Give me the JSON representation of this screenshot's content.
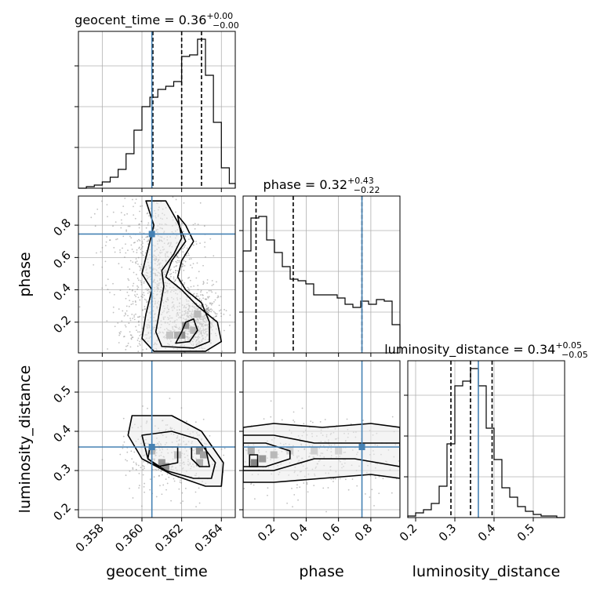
{
  "chart_data": {
    "type": "corner",
    "truth_color": "#4682b4",
    "parameters": [
      {
        "name": "geocent_time",
        "title_value": "0.36",
        "title_plus": "+0.00",
        "title_minus": "−0.00",
        "range": [
          0.3568,
          0.3647
        ],
        "ticks": [
          0.358,
          0.36,
          0.362,
          0.364
        ],
        "tick_labels": [
          "0.358",
          "0.360",
          "0.362",
          "0.364"
        ],
        "truth": 0.3605,
        "quantiles": [
          0.36055,
          0.362,
          0.363
        ],
        "hist_edges": [
          0.3568,
          0.3572,
          0.3576,
          0.358,
          0.3584,
          0.3588,
          0.3592,
          0.3596,
          0.36,
          0.3604,
          0.3608,
          0.3612,
          0.3616,
          0.362,
          0.3624,
          0.3628,
          0.3632,
          0.3636,
          0.364,
          0.3644,
          0.3647
        ],
        "hist_counts": [
          0,
          0.01,
          0.02,
          0.04,
          0.07,
          0.12,
          0.22,
          0.37,
          0.52,
          0.58,
          0.63,
          0.65,
          0.68,
          0.84,
          0.85,
          0.95,
          0.72,
          0.42,
          0.13,
          0.03
        ]
      },
      {
        "name": "phase",
        "title_value": "0.32",
        "title_plus": "+0.43",
        "title_minus": "−0.22",
        "range": [
          0.01,
          0.98
        ],
        "ticks": [
          0.2,
          0.4,
          0.6,
          0.8
        ],
        "tick_labels": [
          "0.2",
          "0.4",
          "0.6",
          "0.8"
        ],
        "truth": 0.745,
        "quantiles": [
          0.09,
          0.32,
          0.745
        ],
        "hist_edges": [
          0.01,
          0.0585,
          0.107,
          0.1555,
          0.204,
          0.2525,
          0.301,
          0.3495,
          0.398,
          0.4465,
          0.495,
          0.5435,
          0.592,
          0.6405,
          0.689,
          0.7375,
          0.786,
          0.8345,
          0.883,
          0.9315,
          0.98
        ],
        "hist_counts": [
          0.65,
          0.86,
          0.87,
          0.72,
          0.64,
          0.55,
          0.47,
          0.46,
          0.44,
          0.37,
          0.37,
          0.37,
          0.35,
          0.31,
          0.29,
          0.33,
          0.31,
          0.34,
          0.33,
          0.18
        ]
      },
      {
        "name": "luminosity_distance",
        "title_value": "0.34",
        "title_plus": "+0.05",
        "title_minus": "−0.05",
        "range": [
          0.18,
          0.58
        ],
        "ticks": [
          0.2,
          0.3,
          0.4,
          0.5
        ],
        "tick_labels": [
          "0.2",
          "0.3",
          "0.4",
          "0.5"
        ],
        "truth": 0.36,
        "quantiles": [
          0.29,
          0.34,
          0.395
        ],
        "hist_edges": [
          0.18,
          0.2,
          0.22,
          0.24,
          0.26,
          0.28,
          0.3,
          0.32,
          0.34,
          0.36,
          0.38,
          0.4,
          0.42,
          0.44,
          0.46,
          0.48,
          0.5,
          0.52,
          0.54,
          0.56,
          0.58
        ],
        "hist_counts": [
          0.01,
          0.03,
          0.05,
          0.09,
          0.2,
          0.47,
          0.84,
          0.87,
          0.95,
          0.84,
          0.57,
          0.37,
          0.19,
          0.13,
          0.07,
          0.04,
          0.02,
          0.01,
          0.01,
          0
        ]
      }
    ],
    "pairs": [
      {
        "x": "geocent_time",
        "y": "phase",
        "truth": [
          0.3605,
          0.745
        ],
        "scatter_centers": [
          [
            0.3605,
            0.2
          ],
          [
            0.3612,
            0.45
          ],
          [
            0.3605,
            0.7
          ],
          [
            0.3625,
            0.15
          ],
          [
            0.363,
            0.25
          ]
        ],
        "scatter_spread": [
          [
            0.0009,
            0.2
          ],
          [
            0.0008,
            0.12
          ],
          [
            0.0012,
            0.15
          ],
          [
            0.0006,
            0.07
          ],
          [
            0.0005,
            0.08
          ]
        ],
        "density_cells": [
          [
            0.362,
            0.12,
            0.9
          ],
          [
            0.3622,
            0.18,
            0.8
          ],
          [
            0.3618,
            0.12,
            0.6
          ],
          [
            0.3628,
            0.25,
            0.5
          ],
          [
            0.3626,
            0.15,
            0.5
          ],
          [
            0.3614,
            0.12,
            0.4
          ]
        ],
        "contours": [
          [
            [
              0.3606,
              0.02
            ],
            [
              0.36,
              0.1
            ],
            [
              0.3602,
              0.25
            ],
            [
              0.3605,
              0.4
            ],
            [
              0.36,
              0.5
            ],
            [
              0.3603,
              0.65
            ],
            [
              0.3606,
              0.8
            ],
            [
              0.3602,
              0.95
            ],
            [
              0.3612,
              0.95
            ],
            [
              0.3618,
              0.82
            ],
            [
              0.3622,
              0.7
            ],
            [
              0.3615,
              0.58
            ],
            [
              0.3612,
              0.48
            ],
            [
              0.362,
              0.4
            ],
            [
              0.3628,
              0.3
            ],
            [
              0.3638,
              0.2
            ],
            [
              0.364,
              0.08
            ],
            [
              0.3632,
              0.02
            ]
          ],
          [
            [
              0.361,
              0.05
            ],
            [
              0.3607,
              0.14
            ],
            [
              0.3609,
              0.28
            ],
            [
              0.3611,
              0.42
            ],
            [
              0.361,
              0.52
            ],
            [
              0.3616,
              0.62
            ],
            [
              0.362,
              0.72
            ],
            [
              0.3618,
              0.86
            ],
            [
              0.3622,
              0.8
            ],
            [
              0.3626,
              0.7
            ],
            [
              0.362,
              0.58
            ],
            [
              0.3618,
              0.48
            ],
            [
              0.3622,
              0.4
            ],
            [
              0.363,
              0.32
            ],
            [
              0.3634,
              0.2
            ],
            [
              0.3634,
              0.08
            ],
            [
              0.3626,
              0.04
            ]
          ],
          [
            [
              0.3617,
              0.07
            ],
            [
              0.362,
              0.14
            ],
            [
              0.3622,
              0.2
            ],
            [
              0.3626,
              0.22
            ],
            [
              0.3628,
              0.15
            ],
            [
              0.3624,
              0.08
            ]
          ]
        ]
      },
      {
        "x": "geocent_time",
        "y": "luminosity_distance",
        "truth": [
          0.3605,
          0.36
        ],
        "scatter_centers": [
          [
            0.3613,
            0.34
          ]
        ],
        "scatter_spread": [
          [
            0.0011,
            0.05
          ]
        ],
        "density_cells": [
          [
            0.3629,
            0.35,
            0.9
          ],
          [
            0.361,
            0.32,
            0.8
          ],
          [
            0.3612,
            0.31,
            0.9
          ],
          [
            0.3631,
            0.34,
            0.7
          ],
          [
            0.3629,
            0.32,
            0.6
          ],
          [
            0.3605,
            0.35,
            0.5
          ],
          [
            0.3618,
            0.34,
            0.4
          ]
        ],
        "contours": [
          [
            [
              0.3595,
              0.44
            ],
            [
              0.3615,
              0.44
            ],
            [
              0.363,
              0.4
            ],
            [
              0.3641,
              0.32
            ],
            [
              0.364,
              0.26
            ],
            [
              0.3632,
              0.26
            ],
            [
              0.3615,
              0.29
            ],
            [
              0.36,
              0.33
            ],
            [
              0.3593,
              0.39
            ]
          ],
          [
            [
              0.36,
              0.39
            ],
            [
              0.3615,
              0.4
            ],
            [
              0.3628,
              0.38
            ],
            [
              0.3637,
              0.32
            ],
            [
              0.3635,
              0.28
            ],
            [
              0.3626,
              0.28
            ],
            [
              0.3612,
              0.3
            ],
            [
              0.3603,
              0.33
            ]
          ],
          [
            [
              0.3604,
              0.36
            ],
            [
              0.3618,
              0.36
            ],
            [
              0.3618,
              0.32
            ],
            [
              0.3608,
              0.31
            ],
            [
              0.3603,
              0.33
            ]
          ],
          [
            [
              0.3625,
              0.36
            ],
            [
              0.3632,
              0.36
            ],
            [
              0.3634,
              0.31
            ],
            [
              0.3629,
              0.31
            ],
            [
              0.3625,
              0.33
            ]
          ]
        ]
      },
      {
        "x": "phase",
        "y": "luminosity_distance",
        "truth": [
          0.745,
          0.36
        ],
        "scatter_centers": [
          [
            0.5,
            0.34
          ]
        ],
        "scatter_spread": [
          [
            0.28,
            0.05
          ]
        ],
        "density_cells": [
          [
            0.08,
            0.32,
            1.0
          ],
          [
            0.13,
            0.33,
            0.8
          ],
          [
            0.06,
            0.35,
            0.6
          ],
          [
            0.2,
            0.34,
            0.5
          ],
          [
            0.3,
            0.35,
            0.3
          ],
          [
            0.45,
            0.35,
            0.3
          ],
          [
            0.6,
            0.35,
            0.25
          ]
        ],
        "contours": [
          [
            [
              0.01,
              0.41
            ],
            [
              0.2,
              0.42
            ],
            [
              0.5,
              0.41
            ],
            [
              0.8,
              0.42
            ],
            [
              0.98,
              0.41
            ],
            [
              0.98,
              0.28
            ],
            [
              0.8,
              0.29
            ],
            [
              0.5,
              0.28
            ],
            [
              0.2,
              0.27
            ],
            [
              0.01,
              0.27
            ]
          ],
          [
            [
              0.01,
              0.39
            ],
            [
              0.2,
              0.39
            ],
            [
              0.45,
              0.37
            ],
            [
              0.7,
              0.37
            ],
            [
              0.98,
              0.37
            ],
            [
              0.98,
              0.31
            ],
            [
              0.7,
              0.33
            ],
            [
              0.45,
              0.33
            ],
            [
              0.2,
              0.3
            ],
            [
              0.01,
              0.3
            ]
          ],
          [
            [
              0.01,
              0.37
            ],
            [
              0.15,
              0.37
            ],
            [
              0.3,
              0.35
            ],
            [
              0.3,
              0.33
            ],
            [
              0.15,
              0.31
            ],
            [
              0.01,
              0.31
            ]
          ],
          [
            [
              0.05,
              0.34
            ],
            [
              0.1,
              0.34
            ],
            [
              0.1,
              0.31
            ],
            [
              0.05,
              0.31
            ]
          ]
        ]
      }
    ]
  }
}
